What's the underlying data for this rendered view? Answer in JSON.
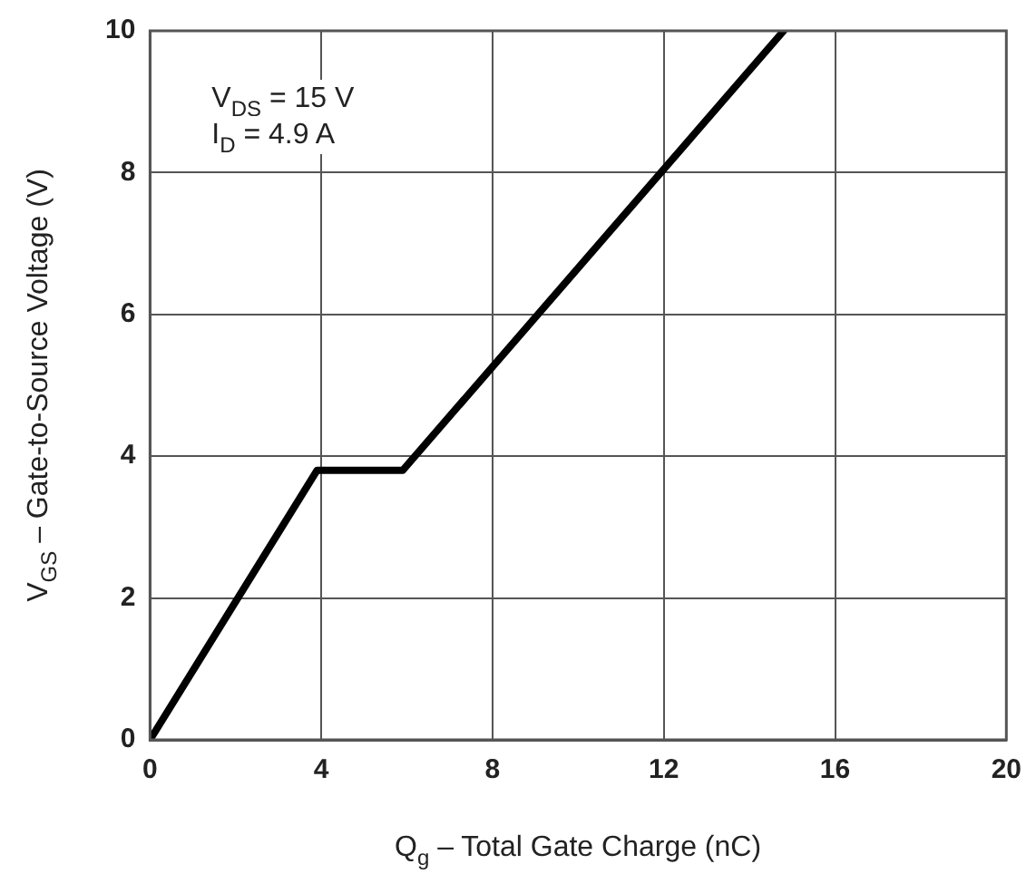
{
  "chart_data": {
    "type": "line",
    "xlabel": "Q$_{g}$ – Total Gate Charge (nC)",
    "ylabel": "V$_{GS}$ – Gate-to-Source Voltage (V)",
    "annotations": [
      "V$_{DS}$ = 15 V",
      "I$_{D}$ = 4.9 A"
    ],
    "x": [
      0,
      3.9,
      5.9,
      14.8
    ],
    "series": [
      {
        "color": "#000000",
        "values": [
          0,
          3.8,
          3.8,
          10
        ]
      }
    ],
    "xlim": [
      0,
      20
    ],
    "xticks": [
      0,
      4,
      8,
      12,
      16,
      20
    ],
    "ylim": [
      0,
      10
    ],
    "yticks": [
      0,
      2,
      4,
      6,
      8,
      10
    ],
    "grid": true,
    "legend": false,
    "marker": "none",
    "line_style": "solid"
  }
}
